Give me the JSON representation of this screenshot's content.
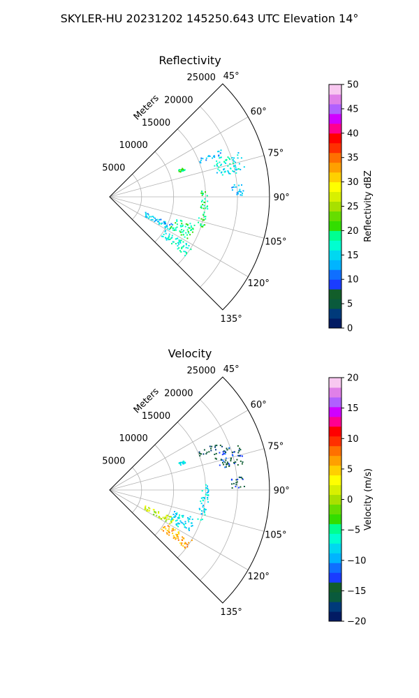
{
  "suptitle": "SKYLER-HU  20231202  145250.643 UTC Elevation 14°",
  "chart_data": [
    {
      "type": "polar-sector",
      "title": "Reflectivity",
      "radial_label": "Meters",
      "radial_ticks": [
        "5000",
        "10000",
        "15000",
        "20000",
        "25000"
      ],
      "radial_tick_values": [
        5000,
        10000,
        15000,
        20000,
        25000
      ],
      "angle_ticks": [
        "45°",
        "60°",
        "75°",
        "90°",
        "105°",
        "120°",
        "135°"
      ],
      "angle_tick_values": [
        45,
        60,
        75,
        90,
        105,
        120,
        135
      ],
      "theta_range": [
        45,
        135
      ],
      "r_max": 25000,
      "colorbar": {
        "label": "Reflectivity dBZ",
        "ticks": [
          "0",
          "5",
          "10",
          "15",
          "20",
          "25",
          "30",
          "35",
          "40",
          "45",
          "50"
        ],
        "vmin": 0,
        "vmax": 50,
        "colors": [
          "#021b63",
          "#003a7a",
          "#0a5a3c",
          "#125e2a",
          "#1a3cff",
          "#0f6fff",
          "#00b4ff",
          "#00d8f0",
          "#00ffd0",
          "#00ff90",
          "#33dd00",
          "#66dd00",
          "#a8e000",
          "#d8f000",
          "#ffff00",
          "#ffd000",
          "#ffa000",
          "#ff7000",
          "#ff3000",
          "#ff0000",
          "#ff0090",
          "#d000ff",
          "#b060ff",
          "#e080e8",
          "#f8c8f0"
        ]
      },
      "clusters": [
        {
          "theta": [
            70,
            79
          ],
          "r": [
            17000,
            21500
          ],
          "value": 16
        },
        {
          "theta": [
            66,
            69
          ],
          "r": [
            15000,
            19000
          ],
          "value": 13
        },
        {
          "theta": [
            84,
            89
          ],
          "r": [
            19000,
            21000
          ],
          "value": 14
        },
        {
          "theta": [
            86,
            108
          ],
          "r": [
            14200,
            15400
          ],
          "value": 19
        },
        {
          "theta": [
            108,
            118
          ],
          "r": [
            10500,
            14000
          ],
          "value": 19
        },
        {
          "theta": [
            113,
            119
          ],
          "r": [
            6000,
            11000
          ],
          "value": 14
        },
        {
          "theta": [
            121,
            128
          ],
          "r": [
            10000,
            15000
          ],
          "value": 17
        },
        {
          "theta": [
            68,
            70
          ],
          "r": [
            11500,
            12500
          ],
          "value": 20
        }
      ]
    },
    {
      "type": "polar-sector",
      "title": "Velocity",
      "radial_label": "Meters",
      "radial_ticks": [
        "5000",
        "10000",
        "15000",
        "20000",
        "25000"
      ],
      "radial_tick_values": [
        5000,
        10000,
        15000,
        20000,
        25000
      ],
      "angle_ticks": [
        "45°",
        "60°",
        "75°",
        "90°",
        "105°",
        "120°",
        "135°"
      ],
      "angle_tick_values": [
        45,
        60,
        75,
        90,
        105,
        120,
        135
      ],
      "theta_range": [
        45,
        135
      ],
      "r_max": 25000,
      "colorbar": {
        "label": "Velocity (m/s)",
        "ticks": [
          "−20",
          "−15",
          "−10",
          "−5",
          "0",
          "5",
          "10",
          "15",
          "20"
        ],
        "vmin": -20,
        "vmax": 20,
        "colors": [
          "#021b63",
          "#003a7a",
          "#0a5a3c",
          "#125e2a",
          "#1a3cff",
          "#0f6fff",
          "#00b4ff",
          "#00d8f0",
          "#00ffd0",
          "#00ff90",
          "#33dd00",
          "#66dd00",
          "#a8e000",
          "#d8f000",
          "#ffff00",
          "#ffd000",
          "#ffa000",
          "#ff7000",
          "#ff3000",
          "#ff0000",
          "#ff0090",
          "#d000ff",
          "#b060ff",
          "#e080e8",
          "#f8c8f0"
        ]
      },
      "clusters": [
        {
          "theta": [
            70,
            79
          ],
          "r": [
            17000,
            21500
          ],
          "value": -14
        },
        {
          "theta": [
            66,
            69
          ],
          "r": [
            15000,
            19000
          ],
          "value": -16
        },
        {
          "theta": [
            84,
            89
          ],
          "r": [
            19000,
            21000
          ],
          "value": -14
        },
        {
          "theta": [
            86,
            108
          ],
          "r": [
            14200,
            15400
          ],
          "value": -8
        },
        {
          "theta": [
            108,
            118
          ],
          "r": [
            10500,
            14000
          ],
          "value": -8
        },
        {
          "theta": [
            113,
            119
          ],
          "r": [
            6000,
            11000
          ],
          "value": 1
        },
        {
          "theta": [
            121,
            128
          ],
          "r": [
            10000,
            15000
          ],
          "value": 6
        },
        {
          "theta": [
            68,
            70
          ],
          "r": [
            11500,
            12500
          ],
          "value": -8
        }
      ]
    }
  ]
}
